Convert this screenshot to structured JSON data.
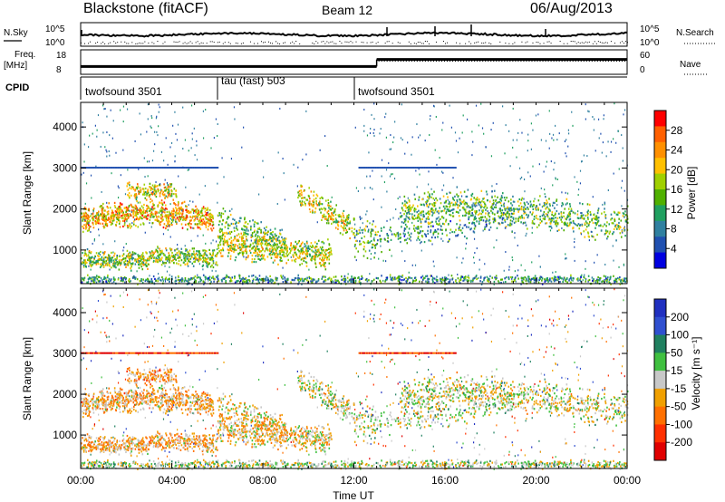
{
  "header": {
    "station": "Blackstone (fitACF)",
    "beam": "Beam 12",
    "date": "06/Aug/2013"
  },
  "nsky_panel": {
    "left_label": "N.Sky",
    "right_label": "N.Search",
    "left_ticks": [
      "10^5",
      "10^0"
    ],
    "right_ticks": [
      "10^5",
      "10^0"
    ]
  },
  "freq_panel": {
    "left_label_1": "Freq.",
    "left_label_2": "[MHz]",
    "right_label": "Nave",
    "left_ticks": [
      "18",
      "8"
    ],
    "right_ticks": [
      "60",
      "0"
    ]
  },
  "cpid_panel": {
    "label": "CPID",
    "segments": [
      {
        "label": "twofsound 3501",
        "start": 0,
        "end": 6
      },
      {
        "label": "tau (fast) 503",
        "start": 6,
        "end": 12
      },
      {
        "label": "twofsound 3501",
        "start": 12,
        "end": 24
      }
    ]
  },
  "power_panel": {
    "ylabel": "Slant Range [km]",
    "yticks": [
      "4000",
      "3000",
      "2000",
      "1000"
    ],
    "colorbar_label": "Power [dB]",
    "colorbar_ticks": [
      "28",
      "24",
      "20",
      "16",
      "12",
      "8",
      "4"
    ],
    "colorbar_colors": [
      "#ff0000",
      "#ff6000",
      "#ff9000",
      "#ffc000",
      "#a0d000",
      "#50b000",
      "#20a060",
      "#3080a0",
      "#2050b0",
      "#0000e0"
    ]
  },
  "velocity_panel": {
    "ylabel": "Slant Range [km]",
    "yticks": [
      "4000",
      "3000",
      "2000",
      "1000"
    ],
    "colorbar_label": "Velocity [m s⁻¹]",
    "colorbar_ticks": [
      "200",
      "100",
      "50",
      "15",
      "-15",
      "-50",
      "-100",
      "-200"
    ],
    "colorbar_colors": [
      "#2030c0",
      "#3050d0",
      "#208060",
      "#40c040",
      "#c8c8c8",
      "#f0a000",
      "#ff7000",
      "#ff3000",
      "#e00000"
    ]
  },
  "xaxis": {
    "ticks": [
      "00:00",
      "04:00",
      "08:00",
      "12:00",
      "16:00",
      "20:00",
      "00:00"
    ],
    "label": "Time UT"
  },
  "chart_data": {
    "type": "heatmap",
    "title": "Blackstone (fitACF)  Beam 12  06/Aug/2013",
    "xlabel": "Time UT",
    "ylabel": "Slant Range [km]",
    "xlim": [
      0,
      24
    ],
    "ylim": [
      180,
      4600
    ],
    "series": [
      {
        "name": "Power [dB]",
        "zlim": [
          0,
          30
        ]
      },
      {
        "name": "Velocity [m s⁻¹]",
        "zlim": [
          -250,
          250
        ]
      }
    ],
    "frequency_mhz": [
      {
        "start": 0,
        "end": 13,
        "value": 10.5
      },
      {
        "start": 13,
        "end": 24,
        "value": 14.5
      }
    ]
  }
}
